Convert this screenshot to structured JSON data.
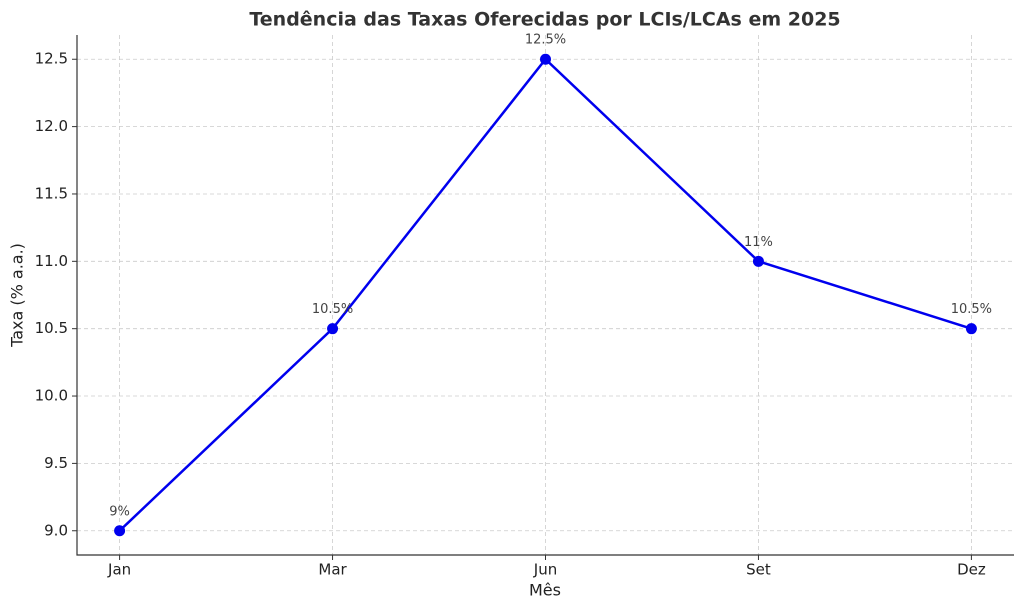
{
  "chart_data": {
    "type": "line",
    "title": "Tendência das Taxas Oferecidas por LCIs/LCAs em 2025",
    "x_label": "Mês",
    "y_label": "Taxa (% a.a.)",
    "categories": [
      "Jan",
      "Mar",
      "Jun",
      "Set",
      "Dez"
    ],
    "values": [
      9,
      10.5,
      12.5,
      11,
      10.5
    ],
    "value_labels": [
      "9%",
      "10.5%",
      "12.5%",
      "11%",
      "10.5%"
    ],
    "color": "#0000ee",
    "ylim": [
      8.82,
      12.68
    ],
    "yticks": [
      {
        "value": 9,
        "label": "9.0"
      },
      9.5,
      {
        "value": 10,
        "label": "10.0"
      },
      10.5,
      {
        "value": 11,
        "label": "11.0"
      },
      11.5,
      {
        "value": 12,
        "label": "12.0"
      },
      12.5
    ],
    "grid": true
  }
}
